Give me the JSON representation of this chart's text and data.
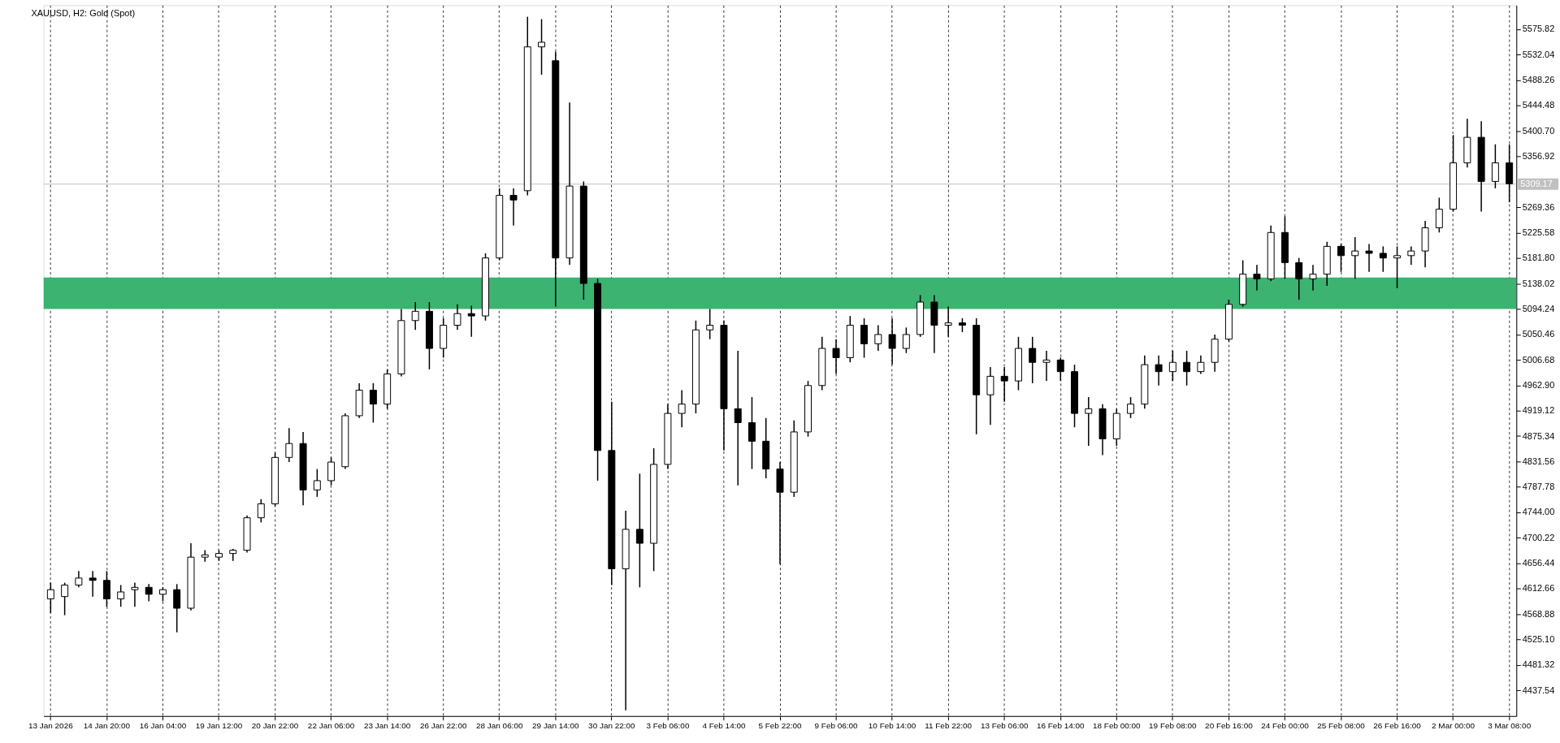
{
  "chart_data": {
    "type": "candlestick",
    "title": "XAUUSD, H2:  Gold (Spot)",
    "categories": [
      "13 Jan 2026",
      null,
      null,
      null,
      "14 Jan 20:00",
      null,
      null,
      null,
      "16 Jan 04:00",
      null,
      null,
      null,
      "19 Jan 12:00",
      null,
      null,
      null,
      "20 Jan 22:00",
      null,
      null,
      null,
      "22 Jan 06:00",
      null,
      null,
      null,
      "23 Jan 14:00",
      null,
      null,
      null,
      "26 Jan 22:00",
      null,
      null,
      null,
      "28 Jan 06:00",
      null,
      null,
      null,
      "29 Jan 14:00",
      null,
      null,
      null,
      "30 Jan 22:00",
      null,
      null,
      null,
      "3 Feb 06:00",
      null,
      null,
      null,
      "4 Feb 14:00",
      null,
      null,
      null,
      "5 Feb 22:00",
      null,
      null,
      null,
      "9 Feb 06:00",
      null,
      null,
      null,
      "10 Feb 14:00",
      null,
      null,
      null,
      "11 Feb 22:00",
      null,
      null,
      null,
      "13 Feb 06:00",
      null,
      null,
      null,
      "16 Feb 14:00",
      null,
      null,
      null,
      "18 Feb 00:00",
      null,
      null,
      null,
      "19 Feb 08:00",
      null,
      null,
      null,
      "20 Feb 16:00",
      null,
      null,
      null,
      "24 Feb 00:00",
      null,
      null,
      null,
      "25 Feb 08:00",
      null,
      null,
      null,
      "26 Feb 16:00",
      null,
      null,
      null,
      "2 Mar 00:00",
      null,
      null,
      null,
      "3 Mar 08:00"
    ],
    "series": [
      {
        "color": "#000000",
        "ohlc": [
          [
            4595.0,
            4622.9,
            4571.0,
            4610.9
          ],
          [
            4599.0,
            4622.9,
            4567.0,
            4618.9
          ],
          [
            4618.9,
            4642.9,
            4614.9,
            4630.9
          ],
          [
            4630.9,
            4642.9,
            4599.0,
            4626.9
          ],
          [
            4626.9,
            4642.9,
            4581.4,
            4595.0
          ],
          [
            4595.0,
            4618.9,
            4581.4,
            4607.0
          ],
          [
            4610.9,
            4622.9,
            4581.4,
            4614.9
          ],
          [
            4614.9,
            4620.5,
            4591.0,
            4603.0
          ],
          [
            4603.0,
            4614.9,
            4591.0,
            4610.9
          ],
          [
            4610.9,
            4620.5,
            4537.5,
            4579.0
          ],
          [
            4579.0,
            4690.8,
            4575.0,
            4666.9
          ],
          [
            4666.9,
            4678.8,
            4658.9,
            4670.9
          ],
          [
            4666.9,
            4678.8,
            4660.5,
            4673.2
          ],
          [
            4673.2,
            4681.2,
            4660.5,
            4678.8
          ],
          [
            4678.8,
            4738.7,
            4674.9,
            4734.7
          ],
          [
            4734.7,
            4766.7,
            4726.7,
            4758.7
          ],
          [
            4758.7,
            4846.6,
            4754.7,
            4838.6
          ],
          [
            4838.6,
            4888.9,
            4830.6,
            4862.5
          ],
          [
            4862.5,
            4882.5,
            4756.3,
            4782.7
          ],
          [
            4782.7,
            4818.6,
            4770.7,
            4798.6
          ],
          [
            4798.6,
            4838.6,
            4790.6,
            4830.6
          ],
          [
            4822.6,
            4914.4,
            4818.6,
            4910.4
          ],
          [
            4910.4,
            4966.4,
            4906.4,
            4954.4
          ],
          [
            4954.4,
            4966.4,
            4898.5,
            4930.4
          ],
          [
            4930.4,
            4990.3,
            4922.4,
            4982.3
          ],
          [
            4982.3,
            5094.2,
            4978.3,
            5074.2
          ],
          [
            5074.2,
            5106.1,
            5058.2,
            5090.2
          ],
          [
            5090.2,
            5106.1,
            4990.3,
            5026.3
          ],
          [
            5026.3,
            5078.2,
            5010.3,
            5066.2
          ],
          [
            5066.2,
            5102.1,
            5058.2,
            5086.2
          ],
          [
            5086.2,
            5099.7,
            5046.2,
            5082.2
          ],
          [
            5082.2,
            5190.0,
            5074.2,
            5182.0
          ],
          [
            5182.0,
            5301.8,
            5178.0,
            5289.8
          ],
          [
            5289.8,
            5301.8,
            5237.9,
            5281.8
          ],
          [
            5297.8,
            5597.3,
            5289.8,
            5545.4
          ],
          [
            5545.4,
            5593.3,
            5497.5,
            5553.4
          ],
          [
            5521.5,
            5537.4,
            5098.2,
            5182.0
          ],
          [
            5182.0,
            5449.6,
            5170.0,
            5305.8
          ],
          [
            5305.8,
            5313.8,
            5110.1,
            5138.1
          ],
          [
            5138.1,
            5146.1,
            4798.6,
            4850.5
          ],
          [
            4850.5,
            4934.4,
            4618.9,
            4646.9
          ],
          [
            4646.9,
            4746.7,
            4403.2,
            4714.8
          ],
          [
            4714.8,
            4810.6,
            4614.9,
            4690.8
          ],
          [
            4690.8,
            4854.5,
            4642.9,
            4826.6
          ],
          [
            4826.6,
            4930.4,
            4818.6,
            4914.4
          ],
          [
            4914.4,
            4954.4,
            4890.5,
            4930.4
          ],
          [
            4930.4,
            5074.2,
            4914.4,
            5058.2
          ],
          [
            5058.2,
            5094.2,
            5042.2,
            5066.2
          ],
          [
            5066.2,
            5074.2,
            4850.5,
            4922.4
          ],
          [
            4922.4,
            5022.3,
            4790.6,
            4898.5
          ],
          [
            4898.5,
            4942.4,
            4818.6,
            4866.5
          ],
          [
            4866.5,
            4906.4,
            4802.6,
            4818.6
          ],
          [
            4818.6,
            4830.6,
            4654.9,
            4778.7
          ],
          [
            4778.7,
            4902.4,
            4770.7,
            4882.5
          ],
          [
            4882.5,
            4970.3,
            4874.5,
            4962.4
          ],
          [
            4962.4,
            5046.2,
            4954.4,
            5026.3
          ],
          [
            5026.3,
            5042.2,
            4982.3,
            5010.3
          ],
          [
            5010.3,
            5082.2,
            5002.3,
            5066.2
          ],
          [
            5066.2,
            5078.2,
            5010.3,
            5034.3
          ],
          [
            5034.3,
            5066.2,
            5022.3,
            5050.2
          ],
          [
            5050.2,
            5078.2,
            4998.3,
            5026.3
          ],
          [
            5026.3,
            5062.2,
            5018.3,
            5050.2
          ],
          [
            5050.2,
            5118.1,
            5046.2,
            5106.1
          ],
          [
            5106.1,
            5118.1,
            5018.3,
            5066.2
          ],
          [
            5066.2,
            5098.2,
            5046.2,
            5070.2
          ],
          [
            5070.2,
            5078.2,
            5054.2,
            5066.2
          ],
          [
            5066.2,
            5078.2,
            4878.5,
            4946.4
          ],
          [
            4946.4,
            4994.3,
            4894.5,
            4978.3
          ],
          [
            4978.3,
            4994.3,
            4934.4,
            4970.3
          ],
          [
            4970.3,
            5046.2,
            4954.4,
            5026.3
          ],
          [
            5026.3,
            5046.2,
            4966.4,
            5002.3
          ],
          [
            5002.3,
            5022.3,
            4970.3,
            5006.3
          ],
          [
            5006.3,
            5010.3,
            4970.3,
            4986.3
          ],
          [
            4986.3,
            4998.3,
            4890.5,
            4914.4
          ],
          [
            4914.4,
            4942.4,
            4858.5,
            4922.4
          ],
          [
            4922.4,
            4930.4,
            4842.6,
            4870.5
          ],
          [
            4870.5,
            4922.4,
            4858.5,
            4914.4
          ],
          [
            4914.4,
            4942.4,
            4906.4,
            4930.4
          ],
          [
            4930.4,
            5014.3,
            4922.4,
            4998.3
          ],
          [
            4998.3,
            5014.3,
            4962.4,
            4986.3
          ],
          [
            4986.3,
            5022.3,
            4970.3,
            5002.3
          ],
          [
            5002.3,
            5022.3,
            4962.4,
            4986.3
          ],
          [
            4986.3,
            5014.3,
            4982.3,
            5002.3
          ],
          [
            5002.3,
            5050.2,
            4986.3,
            5042.2
          ],
          [
            5042.2,
            5110.1,
            5038.2,
            5102.1
          ],
          [
            5102.1,
            5178.0,
            5098.2,
            5154.1
          ],
          [
            5154.1,
            5170.0,
            5126.1,
            5146.1
          ],
          [
            5146.1,
            5237.9,
            5142.1,
            5225.9
          ],
          [
            5225.9,
            5253.9,
            5146.1,
            5174.0
          ],
          [
            5174.0,
            5182.0,
            5110.1,
            5146.1
          ],
          [
            5146.1,
            5170.0,
            5126.1,
            5154.1
          ],
          [
            5154.1,
            5210.0,
            5134.1,
            5202.0
          ],
          [
            5202.0,
            5206.0,
            5158.1,
            5186.0
          ],
          [
            5186.0,
            5218.0,
            5146.1,
            5194.0
          ],
          [
            5194.0,
            5206.0,
            5158.1,
            5190.0
          ],
          [
            5190.0,
            5202.0,
            5158.1,
            5182.0
          ],
          [
            5182.0,
            5202.0,
            5130.1,
            5186.0
          ],
          [
            5186.0,
            5202.0,
            5170.0,
            5194.0
          ],
          [
            5194.0,
            5245.9,
            5166.0,
            5233.9
          ],
          [
            5233.9,
            5285.8,
            5225.9,
            5265.9
          ],
          [
            5265.9,
            5393.7,
            5261.9,
            5345.7
          ],
          [
            5345.7,
            5421.6,
            5337.8,
            5389.7
          ],
          [
            5389.7,
            5417.6,
            5261.9,
            5313.8
          ],
          [
            5313.8,
            5377.7,
            5301.8,
            5345.7
          ],
          [
            5345.7,
            5377.7,
            5277.9,
            5309.8
          ]
        ]
      }
    ],
    "ylim": [
      4393.4,
      5617.3
    ],
    "yticks": [
      4437.54,
      4481.32,
      {
        "value": 4525.1,
        "label": "4525.10"
      },
      4568.88,
      4612.66,
      4656.44,
      4700.22,
      {
        "value": 4744,
        "label": "4744.00"
      },
      4787.78,
      4831.56,
      4875.34,
      4919.12,
      {
        "value": 4962.9,
        "label": "4962.90"
      },
      5006.68,
      5050.46,
      5094.24,
      5138.02,
      {
        "value": 5181.8,
        "label": "5181.80"
      },
      5225.58,
      5269.36,
      5356.92,
      {
        "value": 5400.7,
        "label": "5400.70"
      },
      5444.48,
      5488.26,
      5532.04,
      5575.82
    ],
    "ref_lines": [
      {
        "axis": "y",
        "value": 5309.17,
        "label": "5309.17",
        "color": "#c0c0c0"
      }
    ],
    "bands": [
      {
        "axis": "y",
        "from": 5094.2,
        "to": 5148.5,
        "color": "#3cb371"
      }
    ],
    "grid": "x"
  }
}
